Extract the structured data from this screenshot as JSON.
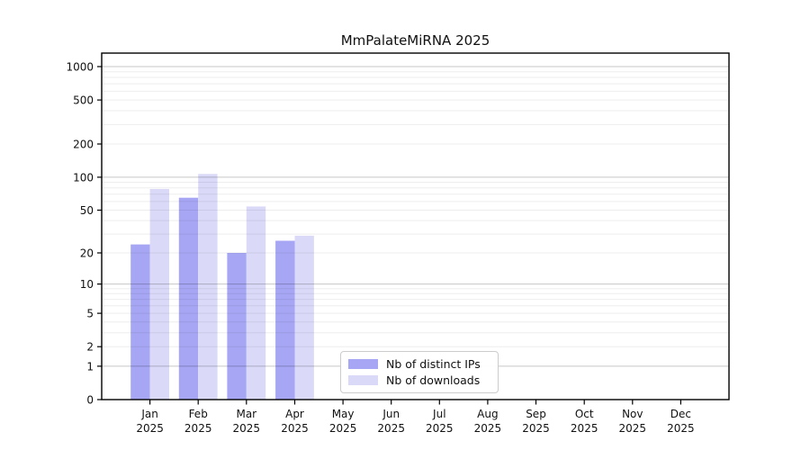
{
  "chart_data": {
    "type": "bar",
    "title": "MmPalateMiRNA 2025",
    "scale": "log10(1+y)",
    "categories": [
      "Jan",
      "Feb",
      "Mar",
      "Apr",
      "May",
      "Jun",
      "Jul",
      "Aug",
      "Sep",
      "Oct",
      "Nov",
      "Dec"
    ],
    "year_label": "2025",
    "series": [
      {
        "name": "Nb of distinct IPs",
        "color": "#a6a6f4",
        "values": [
          24,
          65,
          20,
          26,
          0,
          0,
          0,
          0,
          0,
          0,
          0,
          0
        ]
      },
      {
        "name": "Nb of downloads",
        "color": "#dadaf8",
        "values": [
          78,
          107,
          54,
          29,
          0,
          0,
          0,
          0,
          0,
          0,
          0,
          0
        ]
      }
    ],
    "y_ticks": [
      0,
      1,
      2,
      5,
      10,
      20,
      50,
      100,
      200,
      500,
      1000
    ],
    "y_minor_ticks": [
      2,
      3,
      4,
      5,
      6,
      7,
      8,
      9,
      20,
      30,
      40,
      50,
      60,
      70,
      80,
      90,
      200,
      300,
      400,
      500,
      600,
      700,
      800,
      900
    ],
    "y_major_gridlines": [
      1,
      10,
      100,
      1000
    ],
    "ylim": [
      0,
      1310
    ],
    "xlabel": "",
    "ylabel": "",
    "grid": true,
    "legend_position": "lower center",
    "colors": {
      "background": "#ffffff",
      "spine": "#000000",
      "tick_text": "#111111",
      "grid_major": "rgba(0,0,0,0.22)",
      "grid_minor": "rgba(0,0,0,0.07)",
      "legend_border": "#cccccc"
    }
  }
}
